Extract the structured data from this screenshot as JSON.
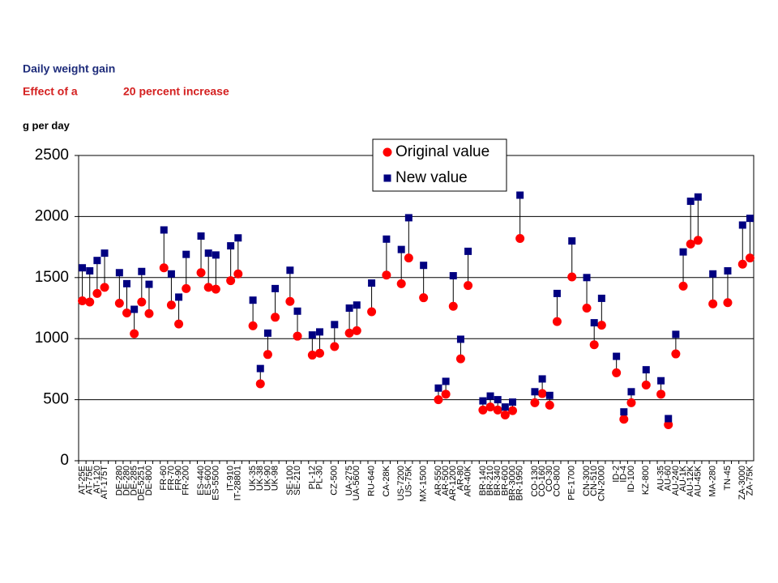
{
  "chart_data": {
    "type": "dropline",
    "title": "Daily weight gain",
    "subtitle": [
      "Effect of a",
      "20 percent increase"
    ],
    "y_label": "g per day",
    "categories": [
      "AT-25E",
      "AT-75E",
      "AT-120",
      "AT-175T",
      null,
      "DE-280",
      "DE-280",
      "DE-285",
      "DE-5251",
      "DE-800",
      null,
      "FR-60",
      "FR-70",
      "FR-90",
      "FR-200",
      null,
      "ES-440",
      "ES-600",
      "ES-5500",
      null,
      "IT-910",
      "IT-28801",
      null,
      "UK-35",
      "UK-38",
      "UK-90",
      "UK-98",
      null,
      "SE-100",
      "SE-210",
      null,
      "PL-12",
      "PL-30",
      null,
      "CZ-500",
      null,
      "UA-275",
      "UA-5600",
      null,
      "RU-640",
      null,
      "CA-28K",
      null,
      "US-7200",
      "US-75K",
      null,
      "MX-1500",
      null,
      "AR-550",
      "AR-500",
      "AR-1200",
      "AR-80",
      "AR-40K",
      null,
      "BR-140",
      "BR-210",
      "BR-340",
      "BR-600",
      "BR-3000",
      "BR-1950",
      null,
      "CO-130",
      "CO-160",
      "CO-30",
      "CO-800",
      null,
      "PE-1700",
      null,
      "CN-300",
      "CN-510",
      "CN-2000",
      null,
      "ID-2",
      "ID-4",
      "ID-100",
      null,
      "KZ-800",
      null,
      "AU-35",
      "AU-60",
      "AU-240",
      "AU-1K",
      "AU-12K",
      "AU-45K",
      null,
      "MA-280",
      null,
      "TN-45",
      null,
      "ZA-3000",
      "ZA-75K"
    ],
    "series": [
      {
        "name": "Original value",
        "color": "#ff0000",
        "marker": "circle",
        "values": [
          1310,
          1300,
          1370,
          1420,
          null,
          1290,
          1210,
          1040,
          1300,
          1205,
          null,
          1580,
          1275,
          1120,
          1410,
          null,
          1540,
          1420,
          1405,
          null,
          1475,
          1530,
          null,
          1105,
          630,
          870,
          1175,
          null,
          1305,
          1020,
          null,
          865,
          880,
          null,
          935,
          null,
          1045,
          1065,
          null,
          1220,
          null,
          1520,
          null,
          1450,
          1660,
          null,
          1335,
          null,
          500,
          545,
          1265,
          835,
          1435,
          null,
          415,
          440,
          415,
          375,
          410,
          1820,
          null,
          475,
          550,
          455,
          1140,
          null,
          1505,
          null,
          1250,
          950,
          1110,
          null,
          720,
          340,
          475,
          null,
          620,
          null,
          545,
          295,
          875,
          1430,
          1775,
          1805,
          null,
          1285,
          null,
          1295,
          null,
          1610,
          1660
        ]
      },
      {
        "name": "New value",
        "color": "#000080",
        "marker": "square",
        "values": [
          1580,
          1555,
          1640,
          1700,
          null,
          1540,
          1450,
          1240,
          1550,
          1445,
          null,
          1890,
          1530,
          1340,
          1690,
          null,
          1840,
          1700,
          1685,
          null,
          1760,
          1825,
          null,
          1315,
          755,
          1045,
          1410,
          null,
          1560,
          1225,
          null,
          1030,
          1055,
          null,
          1115,
          null,
          1250,
          1275,
          null,
          1455,
          null,
          1815,
          null,
          1730,
          1990,
          null,
          1600,
          null,
          595,
          650,
          1515,
          995,
          1715,
          null,
          490,
          530,
          500,
          440,
          480,
          2175,
          null,
          565,
          670,
          535,
          1370,
          null,
          1800,
          null,
          1500,
          1130,
          1330,
          null,
          855,
          400,
          565,
          null,
          745,
          null,
          655,
          345,
          1035,
          1710,
          2125,
          2160,
          null,
          1530,
          null,
          1555,
          null,
          1930,
          1985
        ]
      }
    ],
    "ylim": [
      0,
      2500
    ],
    "yticks": [
      0,
      500,
      1000,
      1500,
      2000,
      2500
    ],
    "grid": true,
    "legend": "upper center"
  }
}
